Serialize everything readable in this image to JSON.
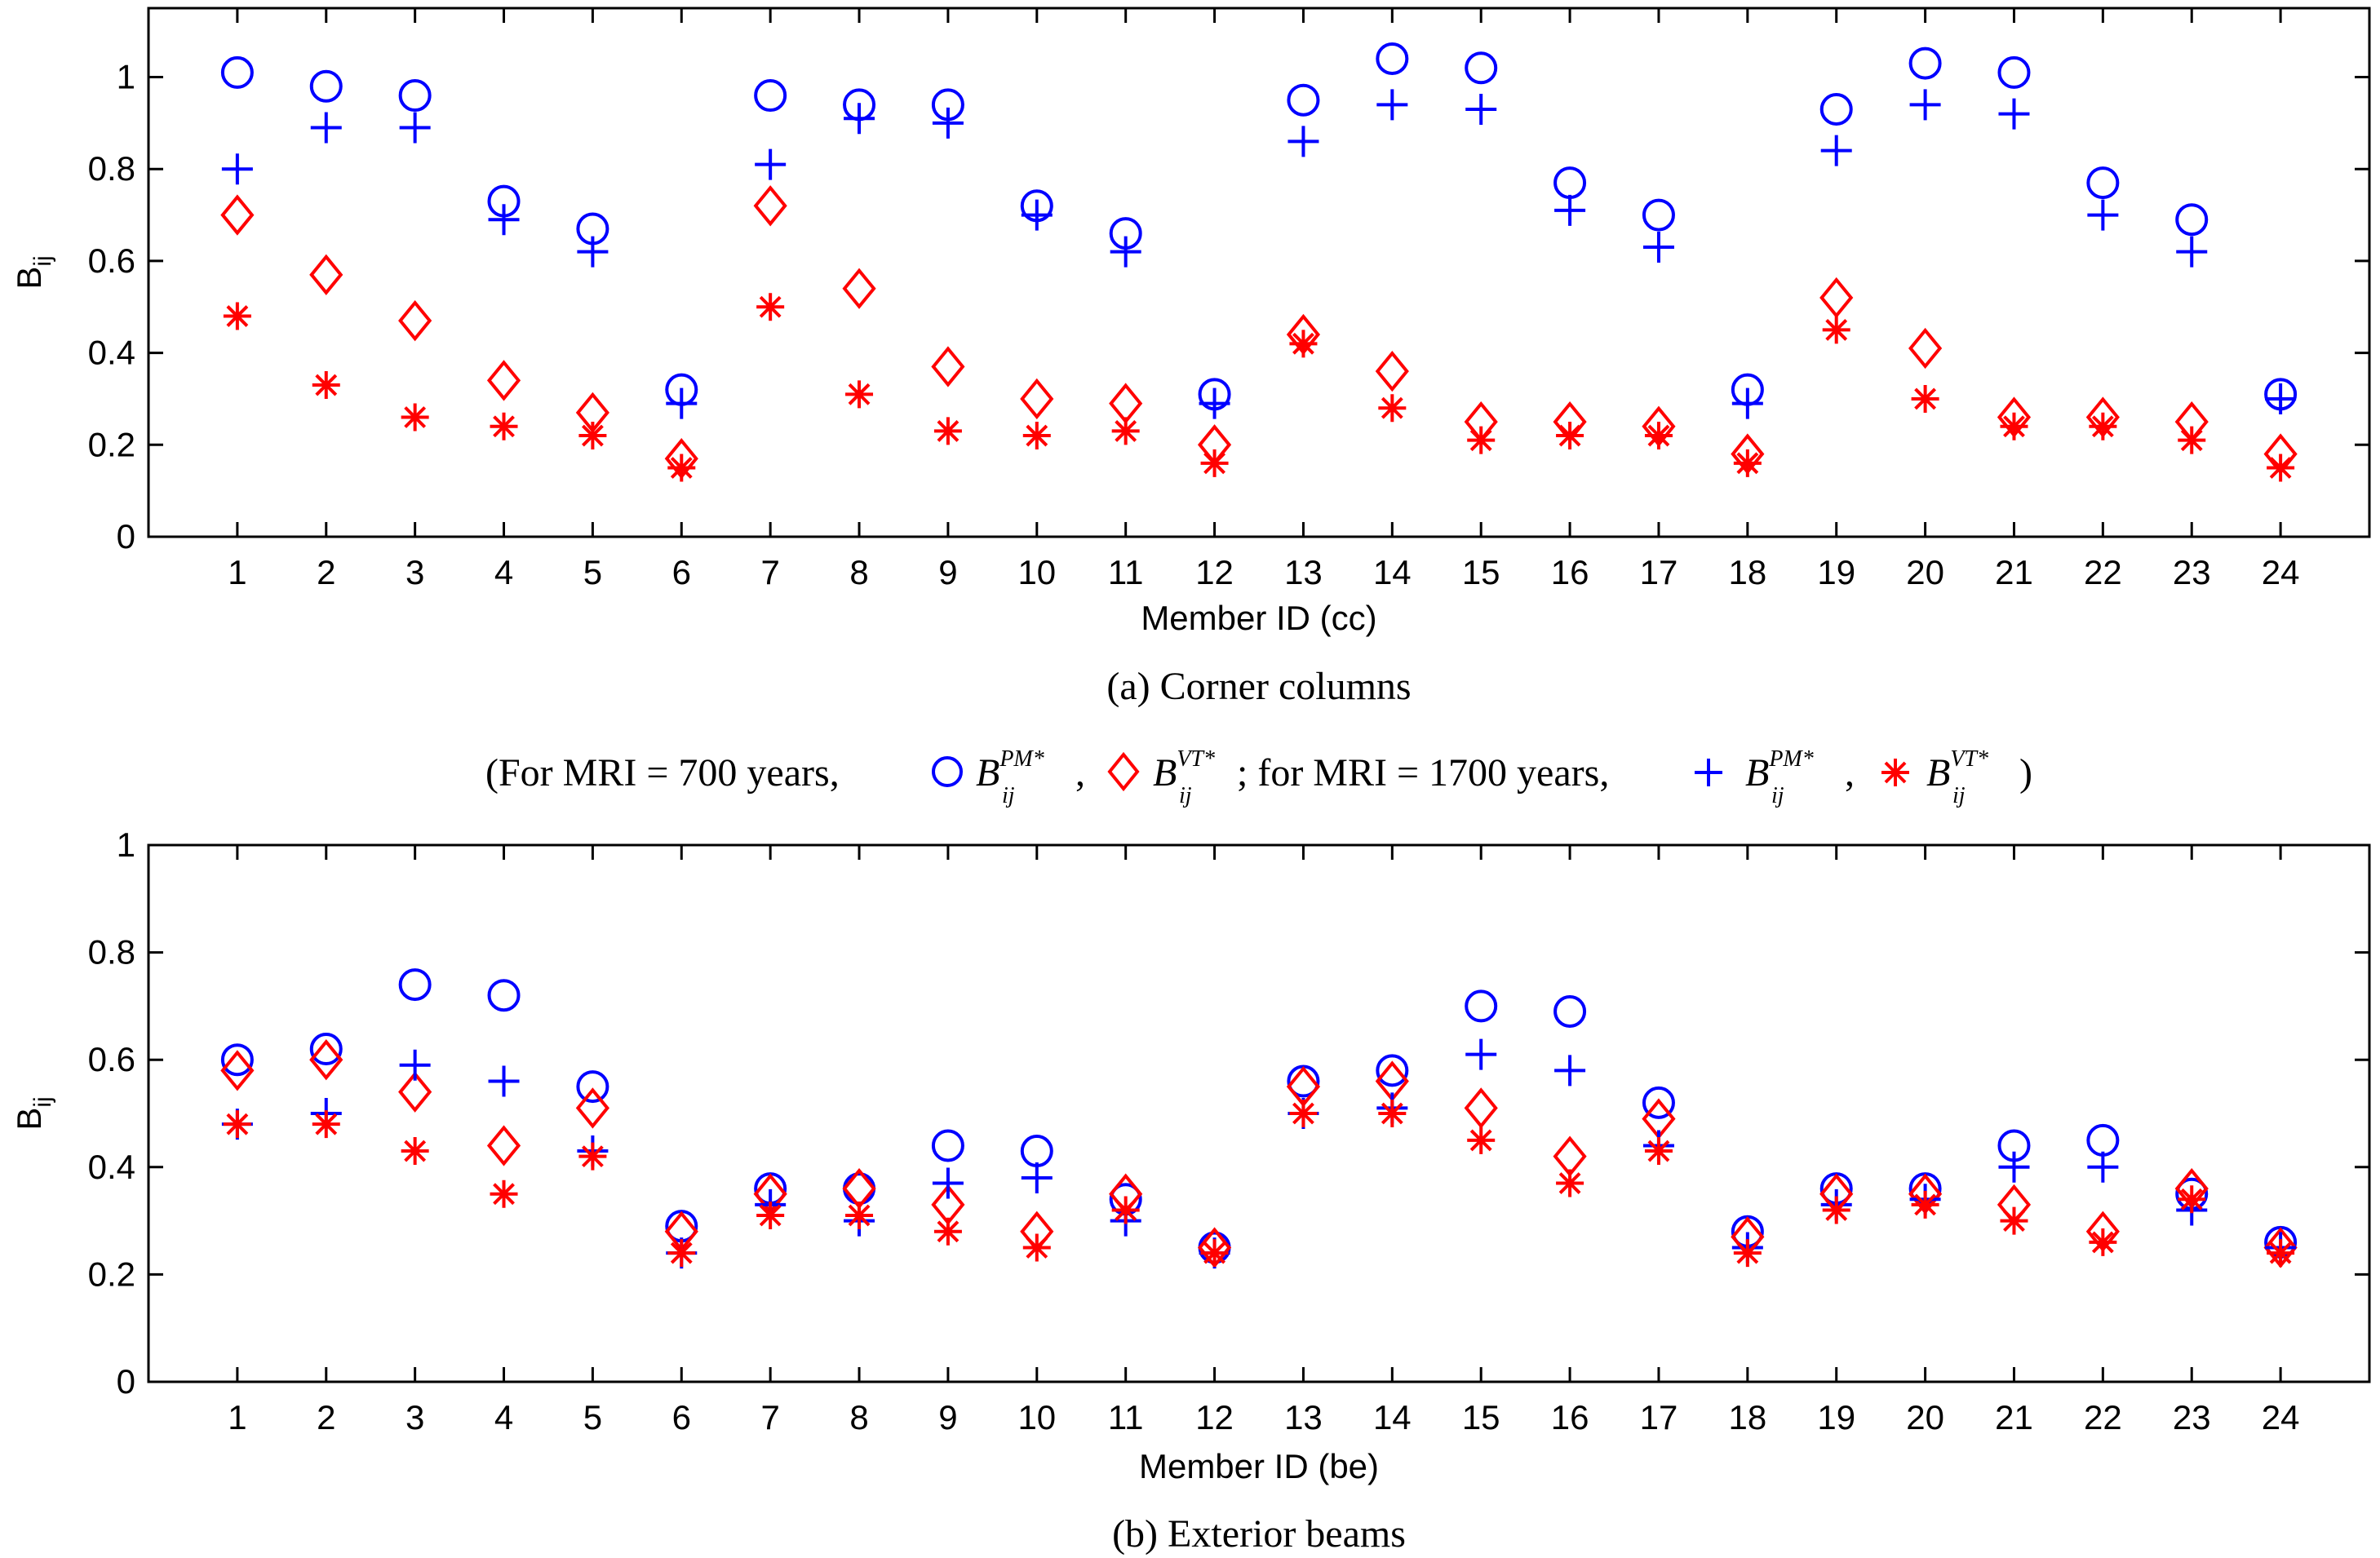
{
  "colors": {
    "blue": "#0000ff",
    "red": "#ff0000",
    "axis": "#000000"
  },
  "legend": {
    "prefix": "(For MRI = 700 years,",
    "mid": "; for MRI = 1700 years,",
    "suffix": ")",
    "comma": ",",
    "symbol_B": "B",
    "sub_ij": "ij",
    "sup_pm": "PM*",
    "sup_vt": "VT*",
    "marker_circle": "circle",
    "marker_diamond": "diamond",
    "marker_plus": "plus",
    "marker_star": "asterisk"
  },
  "chart_data": [
    {
      "type": "scatter",
      "caption": "(a) Corner columns",
      "xlabel": "Member ID (cc)",
      "ylabel": "B",
      "ylabel_sub": "ij",
      "xlim": [
        0,
        25
      ],
      "ylim": [
        0,
        1.15
      ],
      "yticks": [
        0,
        0.2,
        0.4,
        0.6,
        0.8,
        1
      ],
      "ytick_labels": [
        "0",
        "0.2",
        "0.4",
        "0.6",
        "0.8",
        "1"
      ],
      "categories": [
        "1",
        "2",
        "3",
        "4",
        "5",
        "6",
        "7",
        "8",
        "9",
        "10",
        "11",
        "12",
        "13",
        "14",
        "15",
        "16",
        "17",
        "18",
        "19",
        "20",
        "21",
        "22",
        "23",
        "24"
      ],
      "series": [
        {
          "name": "B_ij^PM* (MRI = 700 years)",
          "marker": "circle",
          "color": "#0000ff",
          "values": [
            1.01,
            0.98,
            0.96,
            0.73,
            0.67,
            0.32,
            0.96,
            0.94,
            0.94,
            0.72,
            0.66,
            0.31,
            0.95,
            1.04,
            1.02,
            0.77,
            0.7,
            0.32,
            0.93,
            1.03,
            1.01,
            0.77,
            0.69,
            0.31
          ]
        },
        {
          "name": "B_ij^VT* (MRI = 700 years)",
          "marker": "diamond",
          "color": "#ff0000",
          "values": [
            0.7,
            0.57,
            0.47,
            0.34,
            0.27,
            0.17,
            0.72,
            0.54,
            0.37,
            0.3,
            0.29,
            0.2,
            0.44,
            0.36,
            0.25,
            0.25,
            0.24,
            0.18,
            0.52,
            0.41,
            0.26,
            0.26,
            0.25,
            0.18
          ]
        },
        {
          "name": "B_ij^PM* (MRI = 1700 years)",
          "marker": "plus",
          "color": "#0000ff",
          "values": [
            0.8,
            0.89,
            0.89,
            0.69,
            0.62,
            0.29,
            0.81,
            0.91,
            0.9,
            0.7,
            0.62,
            0.29,
            0.86,
            0.94,
            0.93,
            0.71,
            0.63,
            0.29,
            0.84,
            0.94,
            0.92,
            0.7,
            0.62,
            0.3
          ]
        },
        {
          "name": "B_ij^VT* (MRI = 1700 years)",
          "marker": "asterisk",
          "color": "#ff0000",
          "values": [
            0.48,
            0.33,
            0.26,
            0.24,
            0.22,
            0.15,
            0.5,
            0.31,
            0.23,
            0.22,
            0.23,
            0.16,
            0.42,
            0.28,
            0.21,
            0.22,
            0.22,
            0.16,
            0.45,
            0.3,
            0.24,
            0.24,
            0.21,
            0.15
          ]
        }
      ]
    },
    {
      "type": "scatter",
      "caption": "(b) Exterior beams",
      "xlabel": "Member ID (be)",
      "ylabel": "B",
      "ylabel_sub": "ij",
      "xlim": [
        0,
        25
      ],
      "ylim": [
        0,
        1
      ],
      "yticks": [
        0,
        0.2,
        0.4,
        0.6,
        0.8,
        1
      ],
      "ytick_labels": [
        "0",
        "0.2",
        "0.4",
        "0.6",
        "0.8",
        "1"
      ],
      "categories": [
        "1",
        "2",
        "3",
        "4",
        "5",
        "6",
        "7",
        "8",
        "9",
        "10",
        "11",
        "12",
        "13",
        "14",
        "15",
        "16",
        "17",
        "18",
        "19",
        "20",
        "21",
        "22",
        "23",
        "24"
      ],
      "series": [
        {
          "name": "B_ij^PM* (MRI = 700 years)",
          "marker": "circle",
          "color": "#0000ff",
          "values": [
            0.6,
            0.62,
            0.74,
            0.72,
            0.55,
            0.29,
            0.36,
            0.36,
            0.44,
            0.43,
            0.34,
            0.25,
            0.56,
            0.58,
            0.7,
            0.69,
            0.52,
            0.28,
            0.36,
            0.36,
            0.44,
            0.45,
            0.35,
            0.26
          ]
        },
        {
          "name": "B_ij^VT* (MRI = 700 years)",
          "marker": "diamond",
          "color": "#ff0000",
          "values": [
            0.58,
            0.6,
            0.54,
            0.44,
            0.51,
            0.28,
            0.35,
            0.36,
            0.33,
            0.28,
            0.35,
            0.25,
            0.55,
            0.56,
            0.51,
            0.42,
            0.49,
            0.27,
            0.35,
            0.35,
            0.33,
            0.28,
            0.36,
            0.25
          ]
        },
        {
          "name": "B_ij^PM* (MRI = 1700 years)",
          "marker": "plus",
          "color": "#0000ff",
          "values": [
            0.48,
            0.5,
            0.59,
            0.56,
            0.43,
            0.24,
            0.33,
            0.3,
            0.37,
            0.38,
            0.3,
            0.24,
            0.5,
            0.51,
            0.61,
            0.58,
            0.44,
            0.25,
            0.33,
            0.34,
            0.4,
            0.4,
            0.32,
            0.25
          ]
        },
        {
          "name": "B_ij^VT* (MRI = 1700 years)",
          "marker": "asterisk",
          "color": "#ff0000",
          "values": [
            0.48,
            0.48,
            0.43,
            0.35,
            0.42,
            0.24,
            0.31,
            0.31,
            0.28,
            0.25,
            0.32,
            0.24,
            0.5,
            0.5,
            0.45,
            0.37,
            0.43,
            0.24,
            0.32,
            0.33,
            0.3,
            0.26,
            0.34,
            0.24
          ]
        }
      ]
    }
  ]
}
